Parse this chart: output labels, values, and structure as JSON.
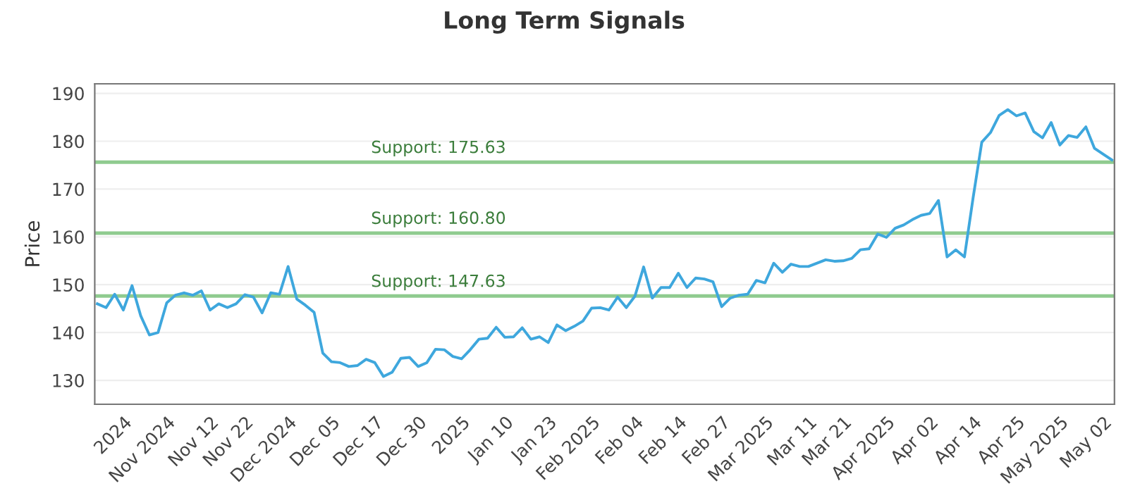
{
  "chart_data": {
    "type": "line",
    "title": "Long Term Signals",
    "ylabel": "Price",
    "categories": [
      null,
      null,
      null,
      "2024",
      null,
      null,
      null,
      null,
      "Nov 2024",
      null,
      null,
      null,
      null,
      "Nov 12",
      null,
      null,
      null,
      "Nov 22",
      null,
      null,
      null,
      null,
      "Dec 2024",
      null,
      null,
      null,
      null,
      "Dec 05",
      null,
      null,
      null,
      null,
      "Dec 17",
      null,
      null,
      null,
      null,
      "Dec 30",
      null,
      null,
      null,
      null,
      "2025",
      null,
      null,
      null,
      null,
      "Jan 10",
      null,
      null,
      null,
      null,
      "Jan 23",
      null,
      null,
      null,
      null,
      "Feb 2025",
      null,
      null,
      null,
      null,
      "Feb 04",
      null,
      null,
      null,
      null,
      "Feb 14",
      null,
      null,
      null,
      null,
      "Feb 27",
      null,
      null,
      null,
      null,
      "Mar 2025",
      null,
      null,
      null,
      null,
      "Mar 11",
      null,
      null,
      null,
      "Mar 21",
      null,
      null,
      null,
      null,
      "Apr 2025",
      null,
      null,
      null,
      null,
      "Apr 02",
      null,
      null,
      null,
      null,
      "Apr 14",
      null,
      null,
      null,
      null,
      "Apr 25",
      null,
      null,
      null,
      null,
      "May 2025",
      null,
      null,
      null,
      null,
      "May 02",
      null
    ],
    "series": [
      {
        "color": "#3ea7dd",
        "values": [
          146.0,
          145.2,
          148.0,
          144.7,
          149.8,
          143.5,
          139.5,
          140.0,
          146.2,
          147.8,
          148.3,
          147.8,
          148.7,
          144.7,
          146.0,
          145.2,
          146.0,
          147.9,
          147.4,
          144.1,
          148.3,
          148.0,
          153.8,
          147.0,
          145.7,
          144.2,
          135.7,
          133.9,
          133.7,
          132.9,
          133.1,
          134.4,
          133.7,
          130.8,
          131.7,
          134.6,
          134.8,
          132.9,
          133.7,
          136.5,
          136.4,
          135.0,
          134.5,
          136.4,
          138.6,
          138.8,
          141.1,
          139.0,
          139.1,
          141.0,
          138.6,
          139.1,
          137.9,
          141.6,
          140.4,
          141.3,
          142.4,
          145.1,
          145.2,
          144.7,
          147.4,
          145.2,
          147.6,
          153.7,
          147.2,
          149.4,
          149.4,
          152.4,
          149.4,
          151.4,
          151.2,
          150.6,
          145.4,
          147.2,
          147.8,
          148.0,
          150.9,
          150.4,
          154.5,
          152.6,
          154.3,
          153.8,
          153.8,
          154.5,
          155.2,
          154.9,
          155.0,
          155.5,
          157.3,
          157.5,
          160.6,
          159.9,
          161.8,
          162.5,
          163.6,
          164.5,
          164.9,
          167.6,
          155.8,
          157.3,
          155.8,
          168.2,
          179.8,
          181.8,
          185.4,
          186.6,
          185.3,
          185.9,
          182.0,
          180.7,
          183.9,
          179.2,
          181.2,
          180.8,
          183.0,
          178.5,
          177.3,
          176.1
        ]
      }
    ],
    "ylim": [
      125,
      192
    ],
    "yticks": [
      130,
      140,
      150,
      160,
      170,
      180,
      190
    ],
    "grid": "y",
    "ref_lines": [
      {
        "axis": "y",
        "value": 175.63,
        "label": "Support: 175.63",
        "color": "#8fcb8f"
      },
      {
        "axis": "y",
        "value": 160.8,
        "label": "Support: 160.80",
        "color": "#8fcb8f"
      },
      {
        "axis": "y",
        "value": 147.63,
        "label": "Support: 147.63",
        "color": "#8fcb8f"
      }
    ]
  }
}
